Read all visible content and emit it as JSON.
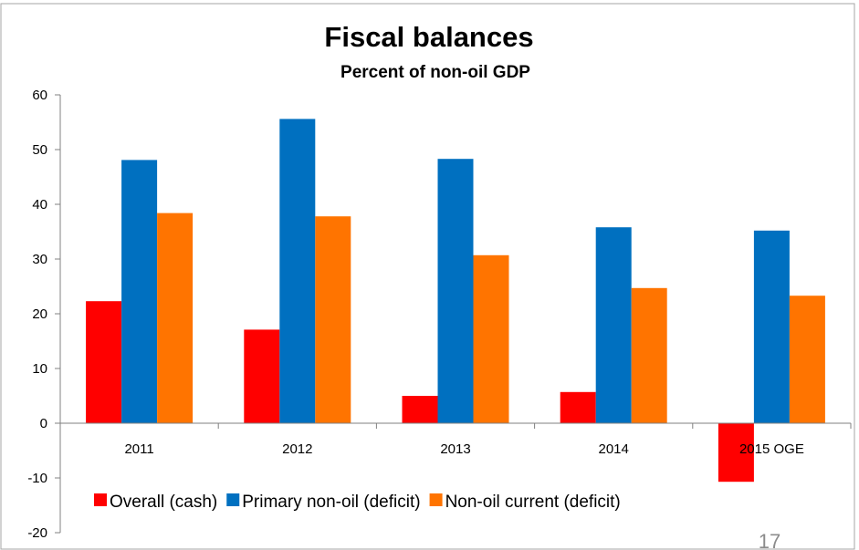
{
  "chart_data": {
    "type": "bar",
    "title": "Fiscal balances",
    "subtitle": "Percent of non-oil GDP",
    "categories": [
      "2011",
      "2012",
      "2013",
      "2014",
      "2015 OGE"
    ],
    "series": [
      {
        "name": "Overall (cash)",
        "color": "#ff0000",
        "values": [
          22.3,
          17.1,
          5.0,
          5.7,
          -10.7
        ]
      },
      {
        "name": "Primary non-oil (deficit)",
        "color": "#0070c0",
        "values": [
          48.1,
          55.6,
          48.3,
          35.8,
          35.2
        ]
      },
      {
        "name": "Non-oil current (deficit)",
        "color": "#ff7400",
        "values": [
          38.4,
          37.8,
          30.7,
          24.7,
          23.3
        ]
      }
    ],
    "ylim": [
      -20,
      60
    ],
    "yticks": [
      -20,
      -10,
      0,
      10,
      20,
      30,
      40,
      50,
      60
    ],
    "grid": false,
    "legend": "bottom"
  },
  "page_number": "17"
}
